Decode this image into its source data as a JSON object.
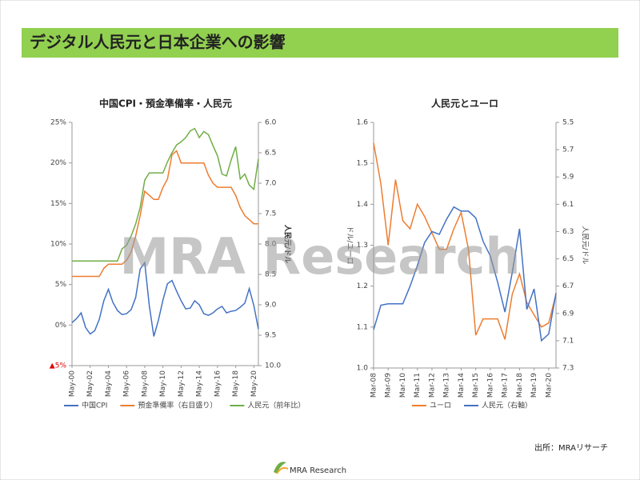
{
  "slide_title": "デジタル人民元と日本企業への影響",
  "watermark": "MRA Research",
  "source": "出所：MRAリサーチ",
  "logo": "MRA Research",
  "chart_data": [
    {
      "type": "line",
      "title": "中国CPI・預金準備率・人民元",
      "categories": [
        "May-00",
        null,
        null,
        null,
        "May-02",
        null,
        null,
        null,
        "May-04",
        null,
        null,
        null,
        "May-06",
        null,
        null,
        null,
        "May-08",
        null,
        null,
        null,
        "May-10",
        null,
        null,
        null,
        "May-12",
        null,
        null,
        null,
        "May-14",
        null,
        null,
        null,
        "May-16",
        null,
        null,
        null,
        "May-18",
        null,
        null,
        null,
        "May-20",
        null
      ],
      "ylim": [
        -5,
        25
      ],
      "yticks": [
        {
          "value": -5,
          "label": "▲5%",
          "color": "#e00000"
        },
        {
          "value": 0,
          "label": "0%"
        },
        {
          "value": 5,
          "label": "5%"
        },
        {
          "value": 10,
          "label": "10%"
        },
        {
          "value": 15,
          "label": "15%"
        },
        {
          "value": 20,
          "label": "20%"
        },
        {
          "value": 25,
          "label": "25%"
        }
      ],
      "y2lim": [
        10,
        6
      ],
      "y2ticks": [
        {
          "value": 6,
          "label": "6.0"
        },
        6.5,
        {
          "value": 7,
          "label": "7.0"
        },
        7.5,
        {
          "value": 8,
          "label": "8.0"
        },
        8.5,
        {
          "value": 9,
          "label": "9.0"
        },
        9.5,
        {
          "value": 10,
          "label": "10.0"
        }
      ],
      "y2label": "人民元/ドル",
      "series": [
        {
          "name": "中国CPI",
          "color": "#4472c4",
          "values": [
            0.3,
            0.8,
            1.5,
            -0.3,
            -1.1,
            -0.7,
            0.7,
            3.0,
            4.4,
            2.8,
            1.8,
            1.3,
            1.4,
            1.9,
            3.4,
            6.9,
            7.7,
            2.4,
            -1.4,
            0.6,
            3.1,
            5.1,
            5.5,
            4.2,
            3.0,
            2.0,
            2.1,
            3.0,
            2.5,
            1.4,
            1.2,
            1.5,
            2.0,
            2.3,
            1.5,
            1.7,
            1.8,
            2.2,
            2.7,
            4.5,
            2.4,
            -0.5
          ]
        },
        {
          "name": "預金準備率（右目盛り）",
          "color": "#ed7d31",
          "values": [
            6,
            6,
            6,
            6,
            6,
            6,
            6,
            7,
            7.5,
            7.5,
            7.5,
            7.5,
            8,
            9,
            11,
            13.5,
            16.5,
            16,
            15.5,
            15.5,
            17,
            18,
            21,
            21.5,
            20,
            20,
            20,
            20,
            20,
            20,
            18.5,
            17.5,
            17,
            17,
            17,
            17,
            16,
            14.5,
            13.5,
            13,
            12.5,
            12.5
          ]
        },
        {
          "name": "人民元（前年比）",
          "color": "#70ad47",
          "axis": "y2",
          "values": [
            8.28,
            8.28,
            8.28,
            8.28,
            8.28,
            8.28,
            8.28,
            8.28,
            8.28,
            8.28,
            8.28,
            8.08,
            8.02,
            7.87,
            7.67,
            7.4,
            6.95,
            6.83,
            6.83,
            6.83,
            6.83,
            6.65,
            6.5,
            6.37,
            6.32,
            6.25,
            6.14,
            6.1,
            6.25,
            6.15,
            6.2,
            6.38,
            6.55,
            6.85,
            6.88,
            6.62,
            6.4,
            6.93,
            6.85,
            7.03,
            7.1,
            6.6
          ]
        }
      ]
    },
    {
      "type": "line",
      "title": "人民元とユーロ",
      "categories": [
        "Mar-08",
        null,
        "Mar-09",
        null,
        "Mar-10",
        null,
        "Mar-11",
        null,
        "Mar-12",
        null,
        "Mar-13",
        null,
        "Mar-14",
        null,
        "Mar-15",
        null,
        "Mar-16",
        null,
        "Mar-17",
        null,
        "Mar-18",
        null,
        "Mar-19",
        null,
        "Mar-20",
        null
      ],
      "ylim": [
        1.0,
        1.6
      ],
      "yticks": [
        {
          "value": 1.0,
          "label": "1.0"
        },
        1.1,
        1.2,
        1.3,
        1.4,
        1.5,
        1.6
      ],
      "ylabel": "ドル/ユーロ",
      "y2lim": [
        7.3,
        5.5
      ],
      "y2ticks": [
        5.5,
        5.7,
        5.9,
        6.1,
        6.3,
        6.5,
        6.7,
        6.9,
        7.1,
        7.3
      ],
      "y2label": "人民元/ドル",
      "series": [
        {
          "name": "ユーロ",
          "color": "#ed7d31",
          "values": [
            1.55,
            1.45,
            1.3,
            1.46,
            1.36,
            1.34,
            1.4,
            1.37,
            1.33,
            1.29,
            1.29,
            1.34,
            1.38,
            1.29,
            1.08,
            1.12,
            1.12,
            1.12,
            1.07,
            1.18,
            1.23,
            1.16,
            1.13,
            1.1,
            1.11,
            1.18
          ]
        },
        {
          "name": "人民元（右軸）",
          "color": "#4472c4",
          "axis": "y2",
          "values": [
            7.02,
            6.84,
            6.83,
            6.83,
            6.83,
            6.7,
            6.55,
            6.38,
            6.3,
            6.32,
            6.21,
            6.12,
            6.15,
            6.15,
            6.2,
            6.37,
            6.48,
            6.67,
            6.89,
            6.6,
            6.28,
            6.87,
            6.72,
            7.1,
            7.05,
            6.75
          ]
        }
      ]
    }
  ]
}
